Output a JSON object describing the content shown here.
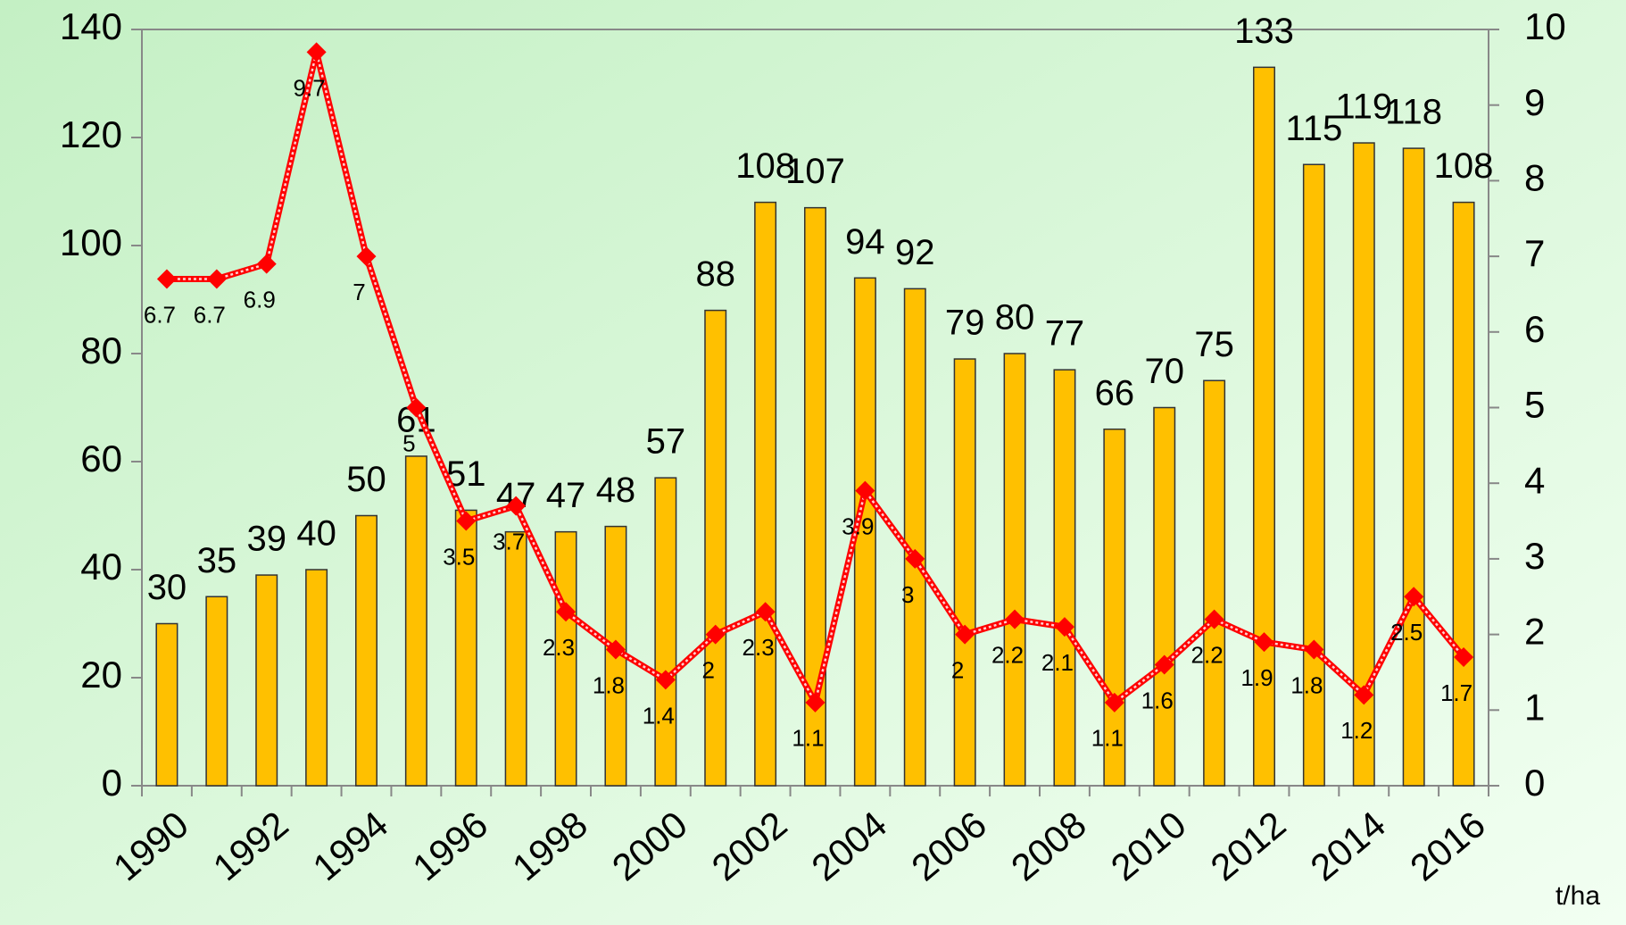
{
  "chart_data": {
    "type": "bar-line",
    "categories": [
      "1990",
      null,
      "1992",
      null,
      "1994",
      null,
      "1996",
      null,
      "1998",
      null,
      "2000",
      null,
      "2002",
      null,
      "2004",
      null,
      "2006",
      null,
      "2008",
      null,
      "2010",
      null,
      "2012",
      null,
      "2014",
      null,
      "2016"
    ],
    "series": [
      {
        "type": "bar",
        "color": "#ffc000",
        "values": [
          30,
          35,
          39,
          40,
          50,
          61,
          51,
          47,
          47,
          48,
          57,
          88,
          108,
          107,
          94,
          92,
          79,
          80,
          77,
          66,
          70,
          75,
          133,
          115,
          119,
          118,
          108
        ]
      },
      {
        "type": "line",
        "axis": "y2",
        "color": "#ff0000",
        "values": [
          6.7,
          6.7,
          6.9,
          9.7,
          7,
          5,
          3.5,
          3.7,
          2.3,
          1.8,
          1.4,
          2,
          2.3,
          1.1,
          3.9,
          3,
          2,
          2.2,
          2.1,
          1.1,
          1.6,
          2.2,
          1.9,
          1.8,
          1.2,
          2.5,
          1.7
        ]
      }
    ],
    "ylim": [
      0,
      140
    ],
    "yticks": [
      0,
      20,
      40,
      60,
      80,
      100,
      120,
      140
    ],
    "y2lim": [
      0,
      10
    ],
    "y2ticks": [
      0,
      1,
      2,
      3,
      4,
      5,
      6,
      7,
      8,
      9,
      10
    ],
    "y2_label": "t/ha"
  }
}
